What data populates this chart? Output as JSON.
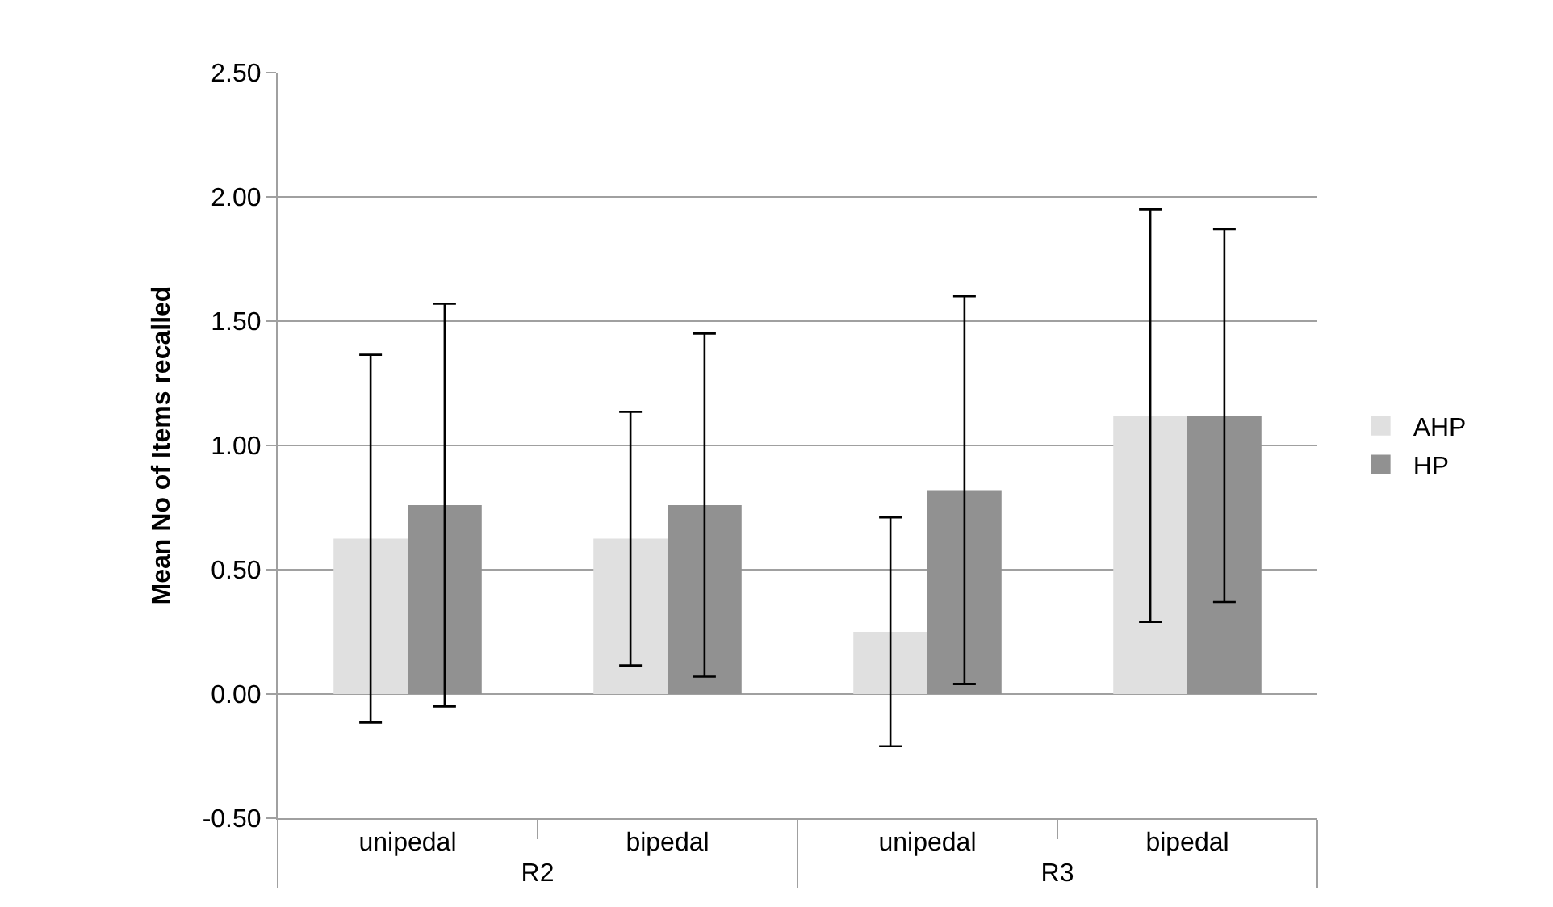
{
  "chart_data": {
    "type": "bar",
    "ylabel": "Mean No of Items recalled",
    "categories": [
      "unipedal",
      "bipedal",
      "unipedal",
      "bipedal"
    ],
    "annotations": [
      "R2",
      "R3"
    ],
    "series": [
      {
        "name": "AHP",
        "color": "#e0e0e0",
        "values": [
          0.625,
          0.625,
          0.25,
          1.12
        ],
        "errors": [
          0.74,
          0.51,
          0.46,
          0.83
        ]
      },
      {
        "name": "HP",
        "color": "#919191",
        "values": [
          0.76,
          0.76,
          0.82,
          1.12
        ],
        "errors": [
          0.81,
          0.69,
          0.78,
          0.75
        ]
      }
    ],
    "ylim": [
      -0.5,
      2.5
    ],
    "yticks": [
      {
        "value": -0.5,
        "label": "-0.50"
      },
      {
        "value": 0,
        "label": "0.00"
      },
      {
        "value": 0.5,
        "label": "0.50"
      },
      {
        "value": 1,
        "label": "1.00"
      },
      {
        "value": 1.5,
        "label": "1.50"
      },
      {
        "value": 2,
        "label": "2.00"
      },
      {
        "value": 2.5,
        "label": "2.50"
      }
    ],
    "grid": "y",
    "legend": "right"
  }
}
